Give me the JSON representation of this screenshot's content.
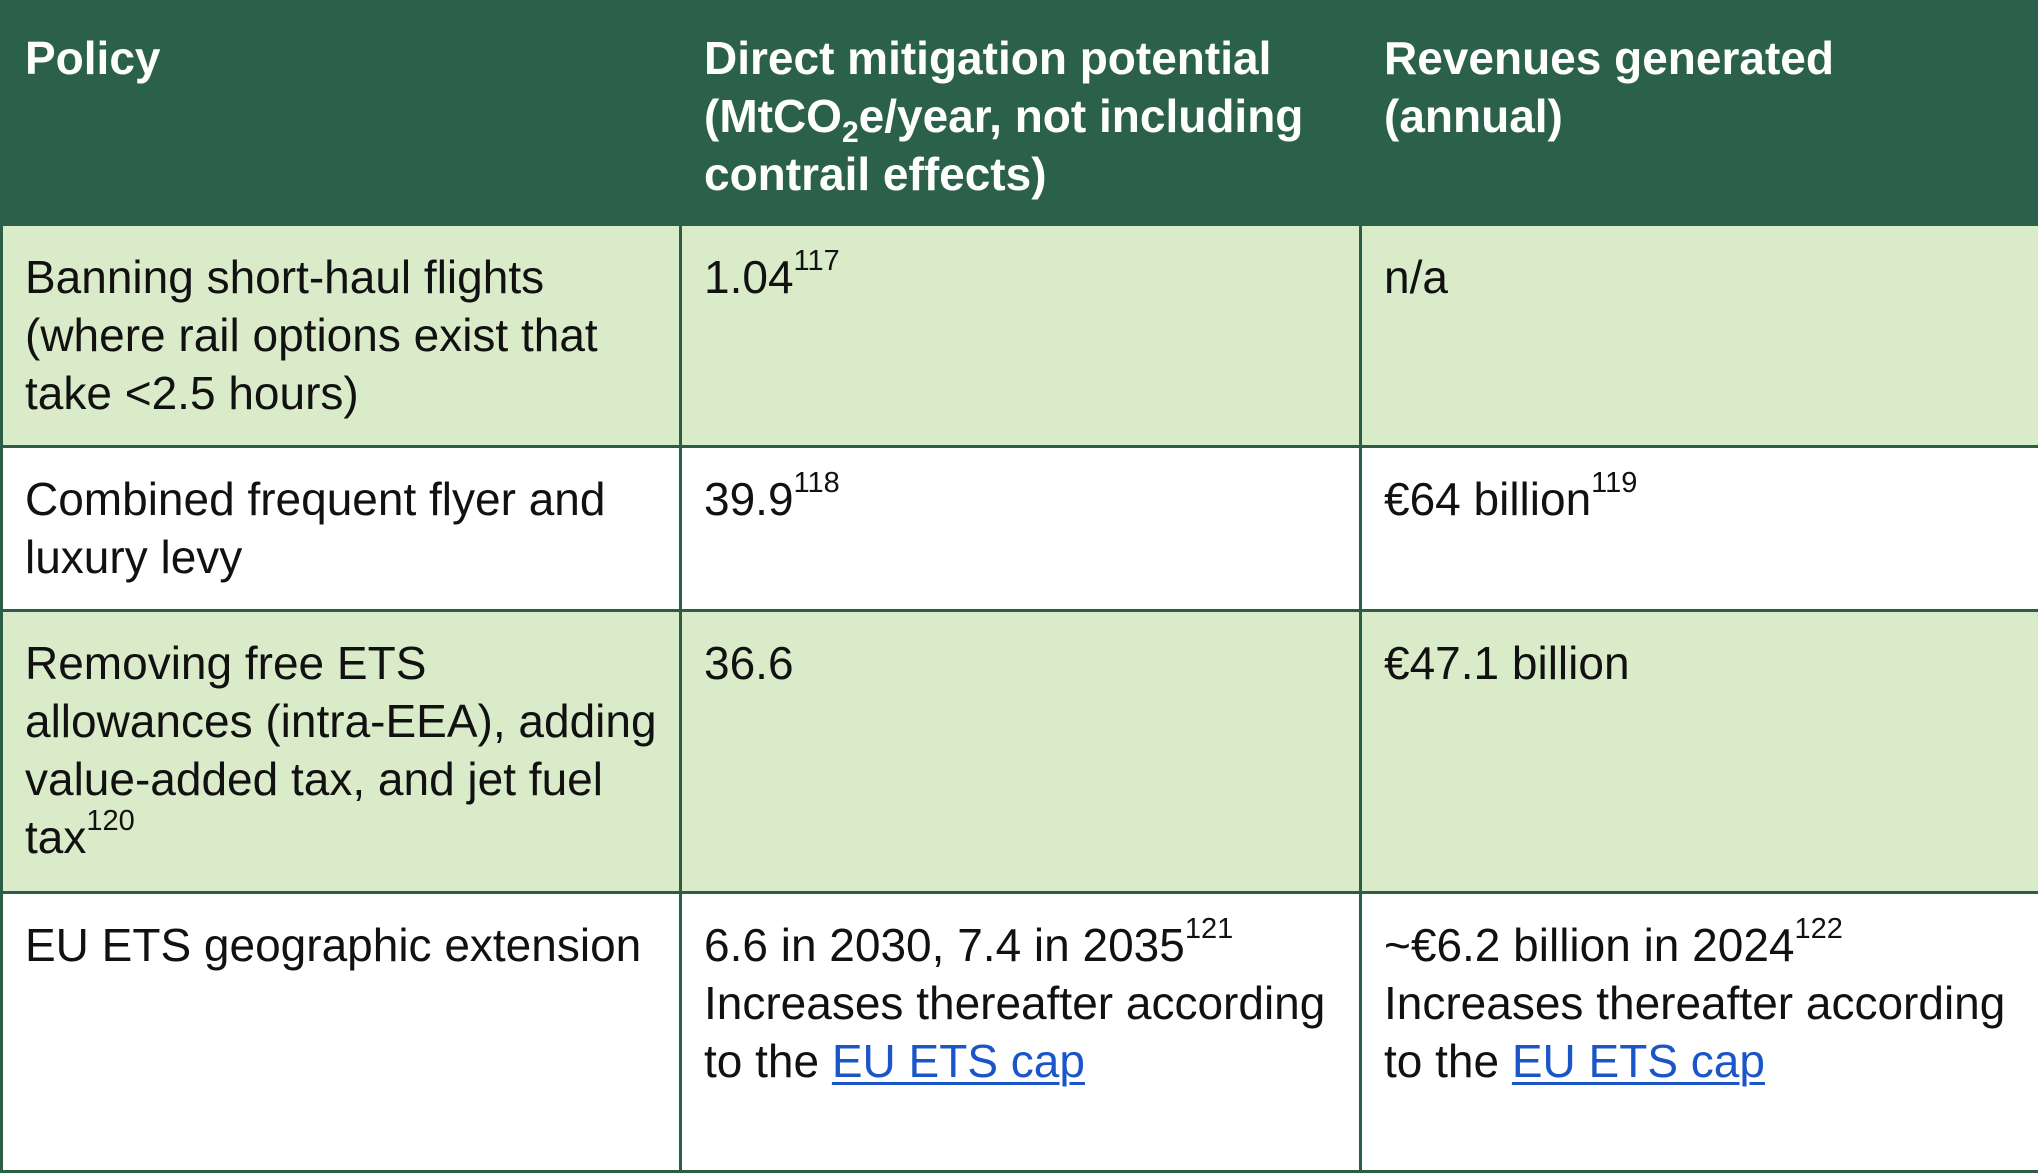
{
  "header": {
    "policy": "Policy",
    "mitigation_prefix": "Direct mitigation potential (MtCO",
    "mitigation_sub": "2",
    "mitigation_suffix": "e/year, not including contrail effects)",
    "revenues": "Revenues generated (annual)"
  },
  "rows": [
    {
      "policy": "Banning short-haul flights (where rail options exist that take <2.5 hours)",
      "mitigation": "1.04",
      "mitigation_ref": "117",
      "revenue": "n/a"
    },
    {
      "policy": "Combined frequent flyer and luxury levy",
      "mitigation": "39.9",
      "mitigation_ref": "118",
      "revenue": "€64 billion",
      "revenue_ref": "119"
    },
    {
      "policy": "Removing free ETS allowances (intra-EEA), adding value-added tax, and jet fuel tax",
      "policy_ref": "120",
      "mitigation": "36.6",
      "revenue": "€47.1 billion"
    },
    {
      "policy": "EU ETS geographic extension",
      "mitigation": "6.6 in 2030, 7.4 in 2035",
      "mitigation_ref": "121",
      "mitigation_note": "Increases thereafter according to the ",
      "mitigation_link": "EU ETS cap",
      "revenue": "~€6.2 billion in 2024",
      "revenue_ref": "122",
      "revenue_note": "Increases thereafter according to the ",
      "revenue_link": "EU ETS cap"
    }
  ],
  "colors": {
    "header_bg": "#2b614a",
    "row_green": "#d9ebc8",
    "row_white": "#ffffff",
    "border": "#2b5e44",
    "link": "#1a56c8"
  }
}
